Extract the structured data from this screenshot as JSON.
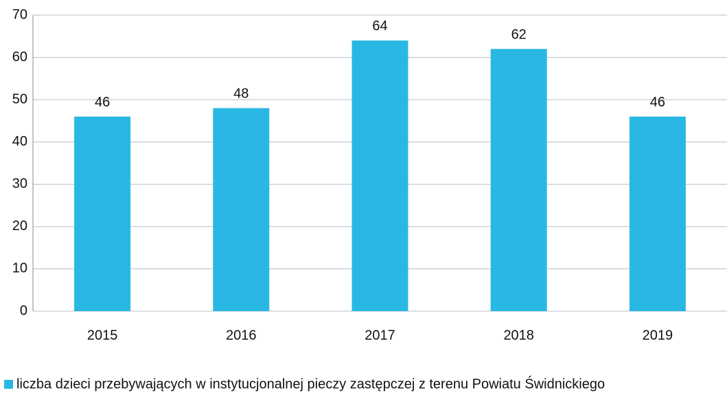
{
  "chart_data": {
    "type": "bar",
    "categories": [
      "2015",
      "2016",
      "2017",
      "2018",
      "2019"
    ],
    "series": [
      {
        "name": "liczba dzieci przebywających w instytucjonalnej pieczy zastępczej z terenu Powiatu Świdnickiego",
        "color": "#29b8e3",
        "values": [
          46,
          48,
          64,
          62,
          46
        ]
      }
    ],
    "ylim": [
      0,
      70
    ],
    "yticks": [
      0,
      10,
      20,
      30,
      40,
      50,
      60,
      70
    ],
    "grid": true,
    "legend": "bottom"
  }
}
